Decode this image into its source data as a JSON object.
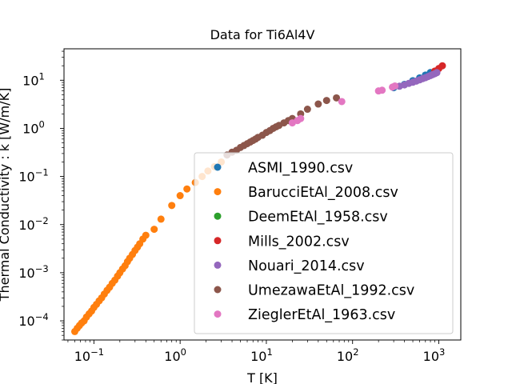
{
  "chart_data": {
    "type": "scatter",
    "title": "Data for Ti6Al4V",
    "xlabel": "T [K]",
    "ylabel": "Thermal Conductivity : k [W/m/K]",
    "xscale": "log",
    "yscale": "log",
    "xlim": [
      0.045,
      1800
    ],
    "ylim": [
      4e-05,
      45
    ],
    "x_ticks": [
      {
        "value": 0.1,
        "base": "10",
        "exp": "−1"
      },
      {
        "value": 1,
        "base": "10",
        "exp": "0"
      },
      {
        "value": 10,
        "base": "10",
        "exp": "1"
      },
      {
        "value": 100,
        "base": "10",
        "exp": "2"
      },
      {
        "value": 1000,
        "base": "10",
        "exp": "3"
      }
    ],
    "y_ticks": [
      {
        "value": 0.0001,
        "base": "10",
        "exp": "−4"
      },
      {
        "value": 0.001,
        "base": "10",
        "exp": "−3"
      },
      {
        "value": 0.01,
        "base": "10",
        "exp": "−2"
      },
      {
        "value": 0.1,
        "base": "10",
        "exp": "−1"
      },
      {
        "value": 1,
        "base": "10",
        "exp": "0"
      },
      {
        "value": 10,
        "base": "10",
        "exp": "1"
      }
    ],
    "legend_position": "lower-right",
    "series": [
      {
        "name": "ASMI_1990.csv",
        "color": "#1f77b4",
        "x": [
          300,
          400,
          500,
          600,
          700,
          800
        ],
        "y": [
          7.0,
          8.2,
          9.8,
          11.2,
          12.8,
          14.5
        ]
      },
      {
        "name": "BarucciEtAl_2008.csv",
        "color": "#ff7f0e",
        "x": [
          0.06,
          0.064,
          0.068,
          0.072,
          0.077,
          0.082,
          0.088,
          0.094,
          0.1,
          0.107,
          0.115,
          0.123,
          0.132,
          0.142,
          0.152,
          0.163,
          0.175,
          0.188,
          0.2,
          0.215,
          0.23,
          0.245,
          0.26,
          0.28,
          0.3,
          0.32,
          0.34,
          0.37,
          0.4,
          0.5,
          0.6,
          0.8,
          1.0,
          1.2,
          1.5,
          1.8,
          2.1,
          2.5,
          3.0
        ],
        "y": [
          6e-05,
          7e-05,
          8e-05,
          9e-05,
          0.0001,
          0.00012,
          0.00014,
          0.00016,
          0.00019,
          0.00022,
          0.00026,
          0.0003,
          0.00036,
          0.00043,
          0.0005,
          0.0006,
          0.0007,
          0.00085,
          0.001,
          0.0012,
          0.0014,
          0.0017,
          0.002,
          0.0024,
          0.0029,
          0.0034,
          0.004,
          0.005,
          0.006,
          0.008,
          0.013,
          0.025,
          0.04,
          0.055,
          0.075,
          0.1,
          0.13,
          0.16,
          0.2
        ]
      },
      {
        "name": "DeemEtAl_1958.csv",
        "color": "#2ca02c",
        "x": [],
        "y": []
      },
      {
        "name": "Mills_2002.csv",
        "color": "#d62728",
        "x": [
          900,
          1000,
          1100
        ],
        "y": [
          15.5,
          17.5,
          20
        ]
      },
      {
        "name": "Nouari_2014.csv",
        "color": "#9467bd",
        "x": [
          350,
          400,
          450,
          500,
          550,
          600,
          650,
          700,
          750,
          800,
          850,
          900,
          950
        ],
        "y": [
          7.5,
          8.0,
          8.6,
          9.1,
          9.6,
          10.2,
          10.8,
          11.3,
          11.9,
          12.5,
          13.1,
          13.7,
          14.4
        ]
      },
      {
        "name": "UmezawaEtAl_1992.csv",
        "color": "#8c564b",
        "x": [
          3.5,
          4,
          4.5,
          5,
          5.5,
          6,
          6.5,
          7,
          7.5,
          8,
          9,
          10,
          11,
          12,
          13,
          14,
          16,
          18,
          20,
          25,
          30,
          40,
          50,
          65
        ],
        "y": [
          0.28,
          0.32,
          0.35,
          0.4,
          0.44,
          0.48,
          0.52,
          0.56,
          0.6,
          0.65,
          0.72,
          0.82,
          0.9,
          1.0,
          1.08,
          1.15,
          1.3,
          1.45,
          1.6,
          2.0,
          2.5,
          3.2,
          3.8,
          4.3
        ]
      },
      {
        "name": "ZieglerEtAl_1963.csv",
        "color": "#e377c2",
        "x": [
          20,
          23,
          25,
          75,
          200,
          220,
          290,
          310
        ],
        "y": [
          1.3,
          1.45,
          1.6,
          3.6,
          6.0,
          6.2,
          7.2,
          7.6
        ]
      }
    ]
  }
}
